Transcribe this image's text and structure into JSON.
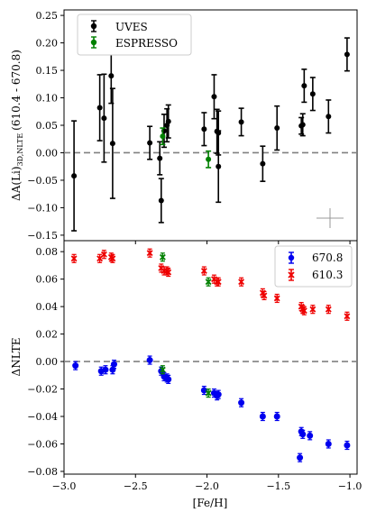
{
  "chart_data": [
    {
      "type": "scatter",
      "ylabel": "ΔA(Li)3D,NLTE (610.4 - 670.8)",
      "ylabel_main": "ΔA(Li)",
      "ylabel_sub": "3D,NLTE",
      "ylabel_rest": "(610.4 - 670.8)",
      "xlim": [
        -3.0,
        -0.95
      ],
      "ylim": [
        -0.16,
        0.26
      ],
      "yticks": [
        "−0.15",
        "−0.10",
        "−0.05",
        "0.00",
        "0.05",
        "0.10",
        "0.15",
        "0.20",
        "0.25"
      ],
      "ytick_values": [
        -0.15,
        -0.1,
        -0.05,
        0.0,
        0.05,
        0.1,
        0.15,
        0.2,
        0.25
      ],
      "reference_line": 0.0,
      "legend_position": "upper-left",
      "series": [
        {
          "name": "UVES",
          "color": "#000000",
          "points": [
            {
              "x": -2.93,
              "y": -0.042,
              "err": 0.1
            },
            {
              "x": -2.75,
              "y": 0.082,
              "err": 0.06
            },
            {
              "x": -2.72,
              "y": 0.063,
              "err": 0.08
            },
            {
              "x": -2.67,
              "y": 0.14,
              "err": 0.05
            },
            {
              "x": -2.66,
              "y": 0.017,
              "err": 0.1
            },
            {
              "x": -2.4,
              "y": 0.018,
              "err": 0.03
            },
            {
              "x": -2.33,
              "y": -0.01,
              "err": 0.03
            },
            {
              "x": -2.32,
              "y": -0.087,
              "err": 0.04
            },
            {
              "x": -2.3,
              "y": 0.04,
              "err": 0.03
            },
            {
              "x": -2.28,
              "y": 0.05,
              "err": 0.03
            },
            {
              "x": -2.27,
              "y": 0.057,
              "err": 0.03
            },
            {
              "x": -2.02,
              "y": 0.043,
              "err": 0.03
            },
            {
              "x": -1.95,
              "y": 0.102,
              "err": 0.04
            },
            {
              "x": -1.93,
              "y": 0.039,
              "err": 0.04
            },
            {
              "x": -1.92,
              "y": 0.036,
              "err": 0.04
            },
            {
              "x": -1.92,
              "y": -0.025,
              "err": 0.065
            },
            {
              "x": -1.76,
              "y": 0.056,
              "err": 0.025
            },
            {
              "x": -1.61,
              "y": -0.02,
              "err": 0.032
            },
            {
              "x": -1.51,
              "y": 0.045,
              "err": 0.04
            },
            {
              "x": -1.34,
              "y": 0.049,
              "err": 0.015
            },
            {
              "x": -1.33,
              "y": 0.051,
              "err": 0.02
            },
            {
              "x": -1.32,
              "y": 0.122,
              "err": 0.03
            },
            {
              "x": -1.26,
              "y": 0.107,
              "err": 0.03
            },
            {
              "x": -1.15,
              "y": 0.066,
              "err": 0.03
            },
            {
              "x": -1.02,
              "y": 0.179,
              "err": 0.03
            }
          ]
        },
        {
          "name": "ESPRESSO",
          "color": "#008000",
          "points": [
            {
              "x": -2.31,
              "y": 0.03,
              "err": 0.015
            },
            {
              "x": -1.99,
              "y": -0.012,
              "err": 0.015
            }
          ]
        }
      ]
    },
    {
      "type": "scatter",
      "xlabel": "[Fe/H]",
      "ylabel": "ΔNLTE",
      "xlim": [
        -3.0,
        -0.95
      ],
      "ylim": [
        -0.082,
        0.088
      ],
      "xticks": [
        "−3.0",
        "−2.5",
        "−2.0",
        "−1.5",
        "−1.0"
      ],
      "xtick_values": [
        -3.0,
        -2.5,
        -2.0,
        -1.5,
        -1.0
      ],
      "yticks": [
        "−0.08",
        "−0.06",
        "−0.04",
        "−0.02",
        "0.00",
        "0.02",
        "0.04",
        "0.06",
        "0.08"
      ],
      "ytick_values": [
        -0.08,
        -0.06,
        -0.04,
        -0.02,
        0.0,
        0.02,
        0.04,
        0.06,
        0.08
      ],
      "reference_line": 0.0,
      "legend_position": "upper-right",
      "series": [
        {
          "name": "670.8",
          "color": "#0000ee",
          "marker": "circle",
          "points": [
            {
              "x": -2.92,
              "y": -0.003
            },
            {
              "x": -2.74,
              "y": -0.007
            },
            {
              "x": -2.71,
              "y": -0.006
            },
            {
              "x": -2.66,
              "y": -0.006
            },
            {
              "x": -2.65,
              "y": -0.002
            },
            {
              "x": -2.4,
              "y": 0.001
            },
            {
              "x": -2.32,
              "y": -0.007
            },
            {
              "x": -2.3,
              "y": -0.011
            },
            {
              "x": -2.28,
              "y": -0.012
            },
            {
              "x": -2.27,
              "y": -0.013
            },
            {
              "x": -2.02,
              "y": -0.021
            },
            {
              "x": -1.95,
              "y": -0.023
            },
            {
              "x": -1.93,
              "y": -0.025
            },
            {
              "x": -1.92,
              "y": -0.024
            },
            {
              "x": -1.76,
              "y": -0.03
            },
            {
              "x": -1.61,
              "y": -0.04
            },
            {
              "x": -1.51,
              "y": -0.04
            },
            {
              "x": -1.34,
              "y": -0.051
            },
            {
              "x": -1.33,
              "y": -0.053
            },
            {
              "x": -1.35,
              "y": -0.07
            },
            {
              "x": -1.28,
              "y": -0.054
            },
            {
              "x": -1.15,
              "y": -0.06
            },
            {
              "x": -1.02,
              "y": -0.061
            }
          ]
        },
        {
          "name": "610.3",
          "color": "#ee0000",
          "marker": "x",
          "points": [
            {
              "x": -2.93,
              "y": 0.075
            },
            {
              "x": -2.75,
              "y": 0.075
            },
            {
              "x": -2.72,
              "y": 0.078
            },
            {
              "x": -2.67,
              "y": 0.076
            },
            {
              "x": -2.66,
              "y": 0.075
            },
            {
              "x": -2.4,
              "y": 0.079
            },
            {
              "x": -2.32,
              "y": 0.068
            },
            {
              "x": -2.3,
              "y": 0.066
            },
            {
              "x": -2.28,
              "y": 0.066
            },
            {
              "x": -2.27,
              "y": 0.065
            },
            {
              "x": -2.02,
              "y": 0.066
            },
            {
              "x": -1.95,
              "y": 0.06
            },
            {
              "x": -1.93,
              "y": 0.058
            },
            {
              "x": -1.92,
              "y": 0.058
            },
            {
              "x": -1.76,
              "y": 0.058
            },
            {
              "x": -1.61,
              "y": 0.05
            },
            {
              "x": -1.6,
              "y": 0.048
            },
            {
              "x": -1.51,
              "y": 0.046
            },
            {
              "x": -1.34,
              "y": 0.04
            },
            {
              "x": -1.33,
              "y": 0.038
            },
            {
              "x": -1.32,
              "y": 0.037
            },
            {
              "x": -1.26,
              "y": 0.038
            },
            {
              "x": -1.15,
              "y": 0.038
            },
            {
              "x": -1.02,
              "y": 0.033
            }
          ]
        },
        {
          "name": "ESPRESSO",
          "color": "#008000",
          "marker": "x",
          "points": [
            {
              "x": -2.31,
              "y": 0.076
            },
            {
              "x": -2.31,
              "y": -0.006
            },
            {
              "x": -1.99,
              "y": 0.058
            },
            {
              "x": -1.99,
              "y": -0.023
            }
          ]
        }
      ]
    }
  ]
}
